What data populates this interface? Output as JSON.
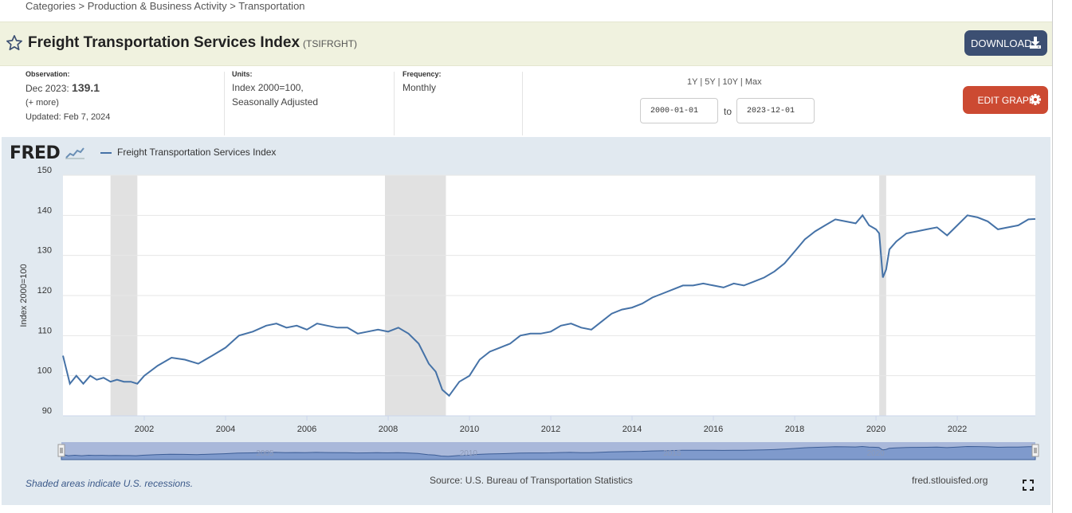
{
  "breadcrumb": {
    "items": [
      "Categories",
      "Production & Business Activity",
      "Transportation"
    ],
    "sep": ">"
  },
  "header": {
    "title": "Freight Transportation Services Index",
    "series_id": "(TSIFRGHT)",
    "download_label": "DOWNLOAD"
  },
  "observation": {
    "label": "Observation:",
    "date": "Dec 2023:",
    "value": "139.1",
    "more": "(+ more)",
    "updated": "Updated: Feb 7, 2024"
  },
  "units": {
    "label": "Units:",
    "line1": "Index 2000=100,",
    "line2": "Seasonally Adjusted"
  },
  "frequency": {
    "label": "Frequency:",
    "value": "Monthly"
  },
  "ranges": {
    "r1": "1Y",
    "r2": "5Y",
    "r3": "10Y",
    "r4": "Max",
    "sep": " | "
  },
  "dates": {
    "start": "2000-01-01",
    "to": "to",
    "end": "2023-12-01"
  },
  "edit_label": "EDIT GRAPH",
  "chart_area": {
    "logo": "FRED",
    "legend": "Freight Transportation Services Index",
    "footnote": "Shaded areas indicate U.S. recessions.",
    "source": "Source: U.S. Bureau of Transportation Statistics",
    "site": "fred.stlouisfed.org",
    "navigator_labels": [
      "2005",
      "2010",
      "2015",
      "2020"
    ]
  },
  "colors": {
    "line": "#4572a7",
    "recession": "#e1e1e1",
    "download": "#3c4f72",
    "edit": "#cc4a32",
    "chart_bg": "#e1e9f0",
    "header_bg": "#f0f2df"
  },
  "chart_data": {
    "type": "line",
    "title": "Freight Transportation Services Index",
    "ylabel": "Index 2000=100",
    "xlabel": "",
    "ylim": [
      90,
      150
    ],
    "xlim": [
      2000.0,
      2023.92
    ],
    "yticks": [
      90,
      100,
      110,
      120,
      130,
      140,
      150
    ],
    "xticks": [
      2002,
      2004,
      2006,
      2008,
      2010,
      2012,
      2014,
      2016,
      2018,
      2020,
      2022
    ],
    "recessions": [
      [
        2001.17,
        2001.83
      ],
      [
        2007.92,
        2009.42
      ],
      [
        2020.08,
        2020.25
      ]
    ],
    "series": [
      {
        "name": "Freight Transportation Services Index",
        "x": [
          2000.0,
          2000.17,
          2000.33,
          2000.5,
          2000.67,
          2000.83,
          2001.0,
          2001.17,
          2001.33,
          2001.5,
          2001.67,
          2001.83,
          2002.0,
          2002.33,
          2002.67,
          2003.0,
          2003.33,
          2003.67,
          2004.0,
          2004.33,
          2004.67,
          2005.0,
          2005.25,
          2005.5,
          2005.75,
          2006.0,
          2006.25,
          2006.5,
          2006.75,
          2007.0,
          2007.25,
          2007.5,
          2007.75,
          2008.0,
          2008.25,
          2008.5,
          2008.75,
          2009.0,
          2009.17,
          2009.33,
          2009.5,
          2009.75,
          2010.0,
          2010.25,
          2010.5,
          2010.75,
          2011.0,
          2011.25,
          2011.5,
          2011.75,
          2012.0,
          2012.25,
          2012.5,
          2012.75,
          2013.0,
          2013.25,
          2013.5,
          2013.75,
          2014.0,
          2014.25,
          2014.5,
          2014.75,
          2015.0,
          2015.25,
          2015.5,
          2015.75,
          2016.0,
          2016.25,
          2016.5,
          2016.75,
          2017.0,
          2017.25,
          2017.5,
          2017.75,
          2018.0,
          2018.25,
          2018.5,
          2018.75,
          2019.0,
          2019.25,
          2019.5,
          2019.67,
          2019.83,
          2020.0,
          2020.08,
          2020.17,
          2020.25,
          2020.33,
          2020.5,
          2020.75,
          2021.0,
          2021.25,
          2021.5,
          2021.75,
          2022.0,
          2022.25,
          2022.5,
          2022.75,
          2023.0,
          2023.25,
          2023.5,
          2023.75,
          2023.92
        ],
        "values": [
          105,
          98,
          100,
          98,
          100,
          99,
          99.5,
          98.5,
          99,
          98.5,
          98.5,
          98,
          100,
          102.5,
          104.5,
          104,
          103,
          105,
          107,
          110,
          111,
          112.5,
          113,
          112,
          112.5,
          111.5,
          113,
          112.5,
          112,
          112,
          110.5,
          111,
          111.5,
          111,
          112,
          110.5,
          108,
          103,
          101,
          96.5,
          95,
          98.5,
          100,
          104,
          106,
          107,
          108,
          110,
          110.5,
          110.5,
          111,
          112.5,
          113,
          112,
          111.5,
          113.5,
          115.5,
          116.5,
          117,
          118,
          119.5,
          120.5,
          121.5,
          122.5,
          122.5,
          123,
          122.5,
          122,
          123,
          122.5,
          123.5,
          124.5,
          126,
          128,
          131,
          134,
          136,
          137.5,
          139,
          138.5,
          138,
          140,
          137.5,
          136.5,
          135.5,
          124.5,
          126.5,
          131.5,
          133.5,
          135.5,
          136,
          136.5,
          137,
          135,
          137.5,
          140,
          139.5,
          138.5,
          136.5,
          137,
          137.5,
          139,
          139.1
        ]
      }
    ]
  }
}
